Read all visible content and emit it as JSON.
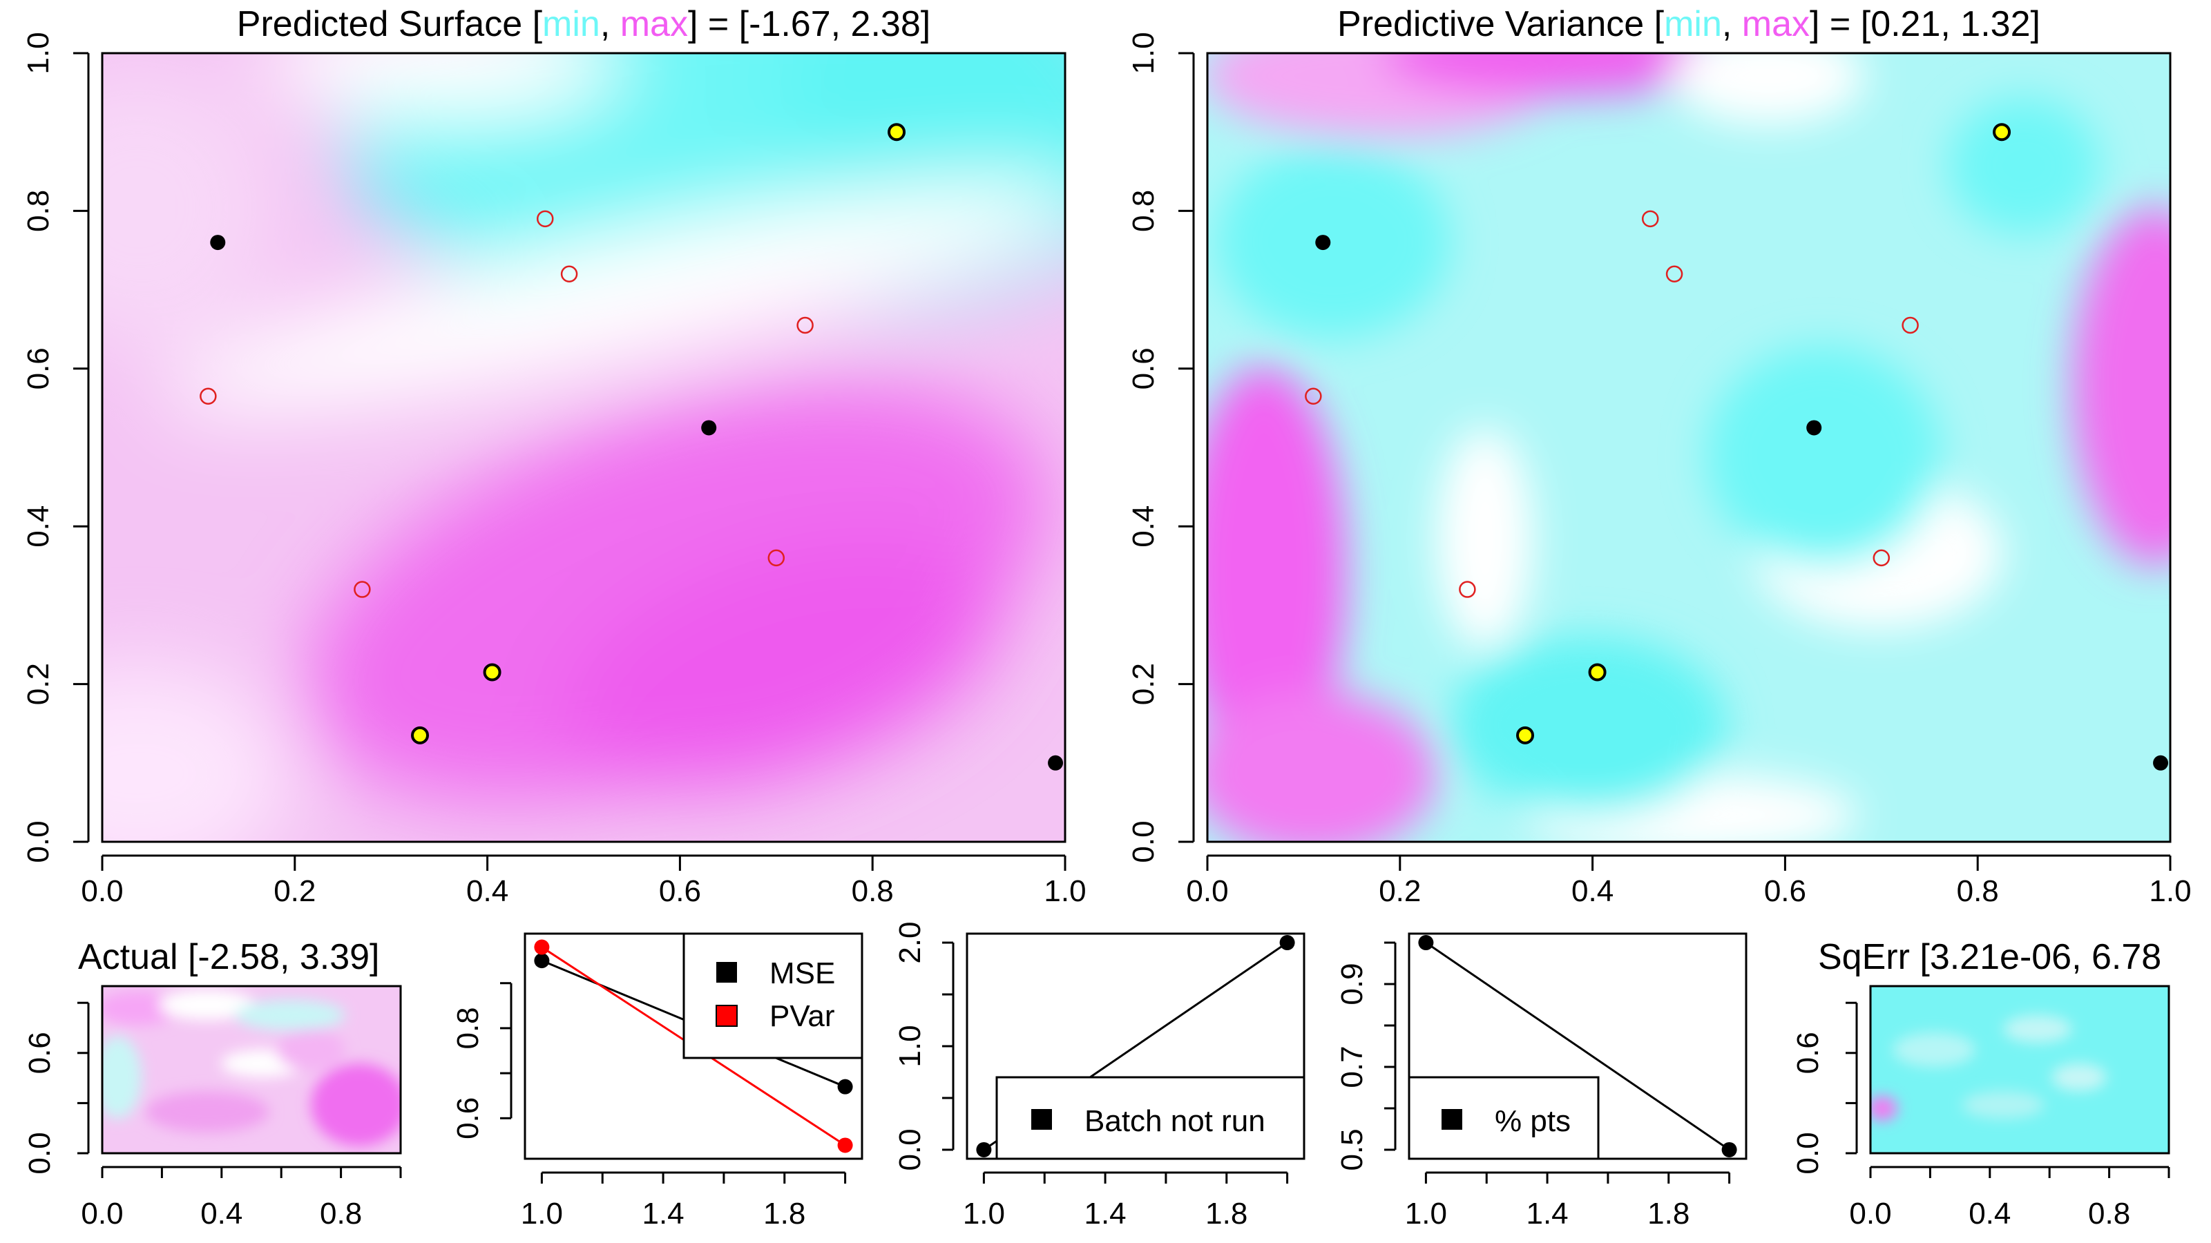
{
  "panels": {
    "predicted_surface": {
      "title_prefix": "Predicted Surface [",
      "title_min": "min",
      "title_sep": ", ",
      "title_max": "max",
      "title_suffix": "] = [-1.67, 2.38]"
    },
    "predictive_variance": {
      "title_prefix": "Predictive Variance [",
      "title_min": "min",
      "title_sep": ", ",
      "title_max": "max",
      "title_suffix": "] = [0.21, 1.32]"
    },
    "actual": {
      "title": "Actual [-2.58, 3.39]"
    },
    "sqerr": {
      "title": "SqErr [3.21e-06, 6.78"
    }
  },
  "colors": {
    "min": "#6ef7f7",
    "max": "#f25cf2",
    "mse": "#000000",
    "pvar": "#ff0000",
    "selected_point": "#ffff00",
    "candidate_point": "#e02020"
  },
  "chart_data": [
    {
      "type": "heatmap",
      "name": "predicted-surface",
      "title": "Predicted Surface [min, max] = [-1.67, 2.38]",
      "xlim": [
        0,
        1
      ],
      "ylim": [
        0,
        1
      ],
      "x_ticks": [
        "0.0",
        "0.2",
        "0.4",
        "0.6",
        "0.8",
        "1.0"
      ],
      "y_ticks": [
        "0.0",
        "0.2",
        "0.4",
        "0.6",
        "0.8",
        "1.0"
      ],
      "design_points": [
        {
          "x": 0.12,
          "y": 0.76
        },
        {
          "x": 0.63,
          "y": 0.525
        },
        {
          "x": 0.99,
          "y": 0.1
        }
      ],
      "selected_points": [
        {
          "x": 0.825,
          "y": 0.9
        },
        {
          "x": 0.405,
          "y": 0.215
        },
        {
          "x": 0.33,
          "y": 0.135
        }
      ],
      "candidate_points": [
        {
          "x": 0.46,
          "y": 0.79
        },
        {
          "x": 0.485,
          "y": 0.72
        },
        {
          "x": 0.73,
          "y": 0.655
        },
        {
          "x": 0.11,
          "y": 0.565
        },
        {
          "x": 0.7,
          "y": 0.36
        },
        {
          "x": 0.27,
          "y": 0.32
        }
      ]
    },
    {
      "type": "heatmap",
      "name": "predictive-variance",
      "title": "Predictive Variance [min, max] = [0.21, 1.32]",
      "xlim": [
        0,
        1
      ],
      "ylim": [
        0,
        1
      ],
      "x_ticks": [
        "0.0",
        "0.2",
        "0.4",
        "0.6",
        "0.8",
        "1.0"
      ],
      "y_ticks": [
        "0.0",
        "0.2",
        "0.4",
        "0.6",
        "0.8",
        "1.0"
      ],
      "design_points": [
        {
          "x": 0.12,
          "y": 0.76
        },
        {
          "x": 0.63,
          "y": 0.525
        },
        {
          "x": 0.99,
          "y": 0.1
        }
      ],
      "selected_points": [
        {
          "x": 0.825,
          "y": 0.9
        },
        {
          "x": 0.405,
          "y": 0.215
        },
        {
          "x": 0.33,
          "y": 0.135
        }
      ],
      "candidate_points": [
        {
          "x": 0.46,
          "y": 0.79
        },
        {
          "x": 0.485,
          "y": 0.72
        },
        {
          "x": 0.73,
          "y": 0.655
        },
        {
          "x": 0.11,
          "y": 0.565
        },
        {
          "x": 0.7,
          "y": 0.36
        },
        {
          "x": 0.27,
          "y": 0.32
        }
      ]
    },
    {
      "type": "heatmap",
      "name": "actual",
      "title": "Actual [-2.58, 3.39]",
      "x_ticks": [
        "0.0",
        "0.4",
        "0.8"
      ],
      "y_ticks": [
        "0.0",
        "0.6"
      ]
    },
    {
      "type": "line",
      "name": "mse-pvar",
      "x": [
        1,
        2
      ],
      "series": [
        {
          "name": "MSE",
          "values": [
            0.95,
            0.67
          ]
        },
        {
          "name": "PVar",
          "values": [
            0.98,
            0.54
          ]
        }
      ],
      "xlim": [
        1,
        2
      ],
      "ylim": [
        0.53,
        0.99
      ],
      "x_ticks": [
        "1.0",
        "1.4",
        "1.8"
      ],
      "y_ticks": [
        "0.6",
        "0.8"
      ],
      "legend": "top-right"
    },
    {
      "type": "line",
      "name": "batch",
      "x": [
        1,
        2
      ],
      "series": [
        {
          "name": "Batch not run",
          "values": [
            0,
            2
          ]
        }
      ],
      "xlim": [
        1,
        2
      ],
      "ylim": [
        0,
        2
      ],
      "x_ticks": [
        "1.0",
        "1.4",
        "1.8"
      ],
      "y_ticks": [
        "0.0",
        "1.0",
        "2.0"
      ],
      "legend": "bottom-right"
    },
    {
      "type": "line",
      "name": "pct-pts",
      "x": [
        1,
        2
      ],
      "series": [
        {
          "name": "% pts",
          "values": [
            1.0,
            0.5
          ]
        }
      ],
      "xlim": [
        1,
        2
      ],
      "ylim": [
        0.5,
        1.0
      ],
      "x_ticks": [
        "1.0",
        "1.4",
        "1.8"
      ],
      "y_ticks": [
        "0.5",
        "0.7",
        "0.9"
      ],
      "legend": "bottom-left"
    },
    {
      "type": "heatmap",
      "name": "sqerr",
      "title": "SqErr [3.21e-06, 6.78",
      "x_ticks": [
        "0.0",
        "0.4",
        "0.8"
      ],
      "y_ticks": [
        "0.0",
        "0.6"
      ]
    }
  ]
}
